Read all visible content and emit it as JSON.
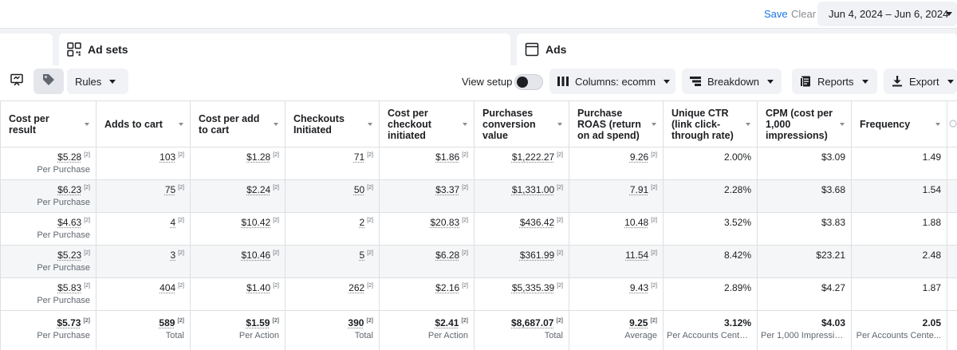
{
  "topbar": {
    "search_value": "",
    "save_label": "Save",
    "clear_label": "Clear",
    "date_range": "Jun 4, 2024 – Jun 6, 2024"
  },
  "tabs": [
    {
      "label": ""
    },
    {
      "label": "Ad sets",
      "icon": "grid-icon"
    },
    {
      "label": "Ads",
      "icon": "ad-frame-icon"
    }
  ],
  "toolbar": {
    "rules_label": "Rules",
    "view_setup_label": "View setup",
    "view_setup_on": false,
    "columns_label": "Columns: ecomm",
    "breakdown_label": "Breakdown",
    "reports_label": "Reports",
    "export_label": "Export"
  },
  "table": {
    "columns": [
      "Cost per result",
      "Adds to cart",
      "Cost per add to cart",
      "Checkouts Initiated",
      "Cost per checkout initiated",
      "Purchases conversion value",
      "Purchase ROAS (return on ad spend)",
      "Unique CTR (link click-through rate)",
      "CPM (cost per 1,000 impressions)",
      "Frequency"
    ],
    "note_marker": "[2]",
    "rows": [
      {
        "cost_per_result": "$5.28",
        "result_type": "Per Purchase",
        "adds_to_cart": "103",
        "cost_per_add": "$1.28",
        "checkouts": "71",
        "cost_per_checkout": "$1.86",
        "conv_value": "$1,222.27",
        "roas": "9.26",
        "unique_ctr": "2.00%",
        "cpm": "$3.09",
        "frequency": "1.49"
      },
      {
        "cost_per_result": "$6.23",
        "result_type": "Per Purchase",
        "adds_to_cart": "75",
        "cost_per_add": "$2.24",
        "checkouts": "50",
        "cost_per_checkout": "$3.37",
        "conv_value": "$1,331.00",
        "roas": "7.91",
        "unique_ctr": "2.28%",
        "cpm": "$3.68",
        "frequency": "1.54"
      },
      {
        "cost_per_result": "$4.63",
        "result_type": "Per Purchase",
        "adds_to_cart": "4",
        "cost_per_add": "$10.42",
        "checkouts": "2",
        "cost_per_checkout": "$20.83",
        "conv_value": "$436.42",
        "roas": "10.48",
        "unique_ctr": "3.52%",
        "cpm": "$3.83",
        "frequency": "1.88"
      },
      {
        "cost_per_result": "$5.23",
        "result_type": "Per Purchase",
        "adds_to_cart": "3",
        "cost_per_add": "$10.46",
        "checkouts": "5",
        "cost_per_checkout": "$6.28",
        "conv_value": "$361.99",
        "roas": "11.54",
        "unique_ctr": "8.42%",
        "cpm": "$23.21",
        "frequency": "2.48"
      },
      {
        "cost_per_result": "$5.83",
        "result_type": "Per Purchase",
        "adds_to_cart": "404",
        "cost_per_add": "$1.40",
        "checkouts": "262",
        "cost_per_checkout": "$2.16",
        "conv_value": "$5,335.39",
        "roas": "9.43",
        "unique_ctr": "2.89%",
        "cpm": "$4.27",
        "frequency": "1.87"
      }
    ],
    "totals": {
      "cost_per_result": "$5.73",
      "cost_per_result_sub": "Per Purchase",
      "adds_to_cart": "589",
      "adds_to_cart_sub": "Total",
      "cost_per_add": "$1.59",
      "cost_per_add_sub": "Per Action",
      "checkouts": "390",
      "checkouts_sub": "Total",
      "cost_per_checkout": "$2.41",
      "cost_per_checkout_sub": "Per Action",
      "conv_value": "$8,687.07",
      "conv_value_sub": "Total",
      "roas": "9.25",
      "roas_sub": "Average",
      "unique_ctr": "3.12%",
      "unique_ctr_sub": "Per Accounts Cente...",
      "cpm": "$4.03",
      "cpm_sub": "Per 1,000 Impressio...",
      "frequency": "2.05",
      "frequency_sub": "Per Accounts Cente..."
    }
  },
  "colors": {
    "accent": "#1b74e4",
    "band": "#f0f2f5",
    "border": "#dddfe2",
    "stripe": "#f5f6f7"
  }
}
